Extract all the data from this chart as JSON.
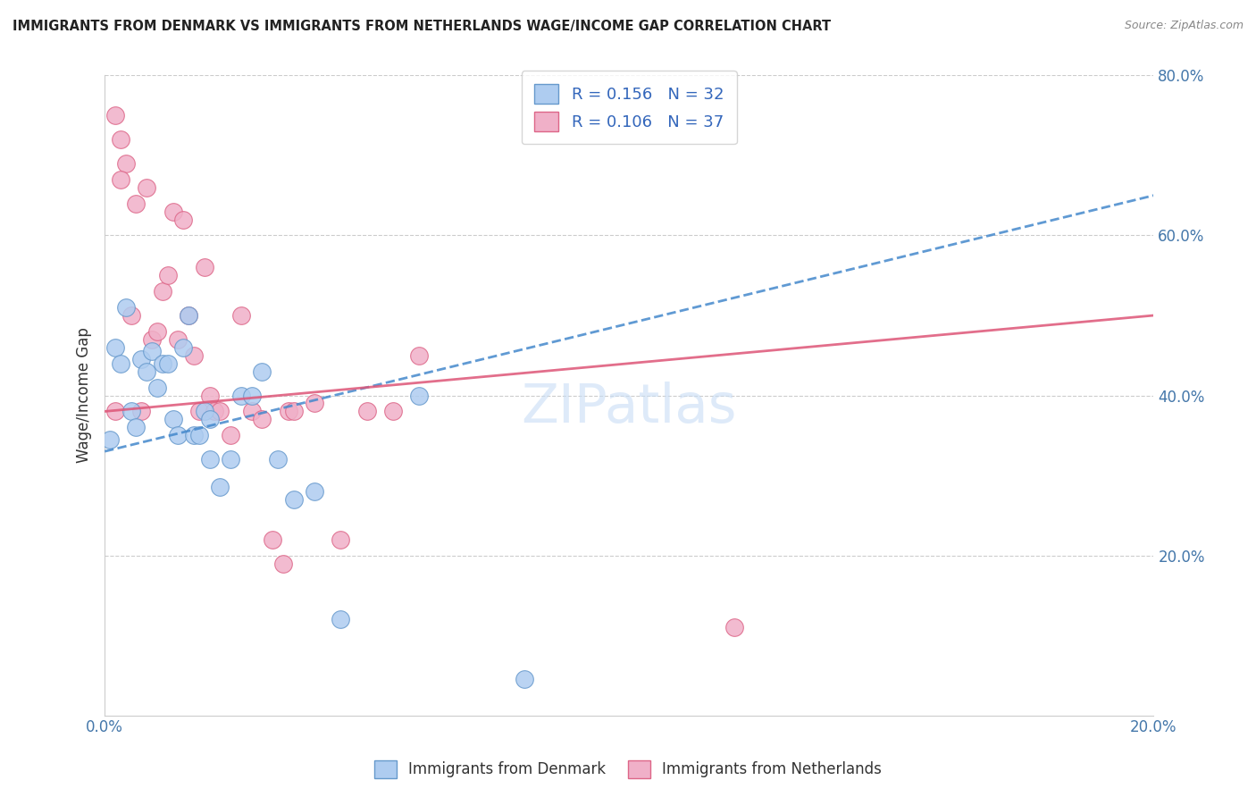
{
  "title": "IMMIGRANTS FROM DENMARK VS IMMIGRANTS FROM NETHERLANDS WAGE/INCOME GAP CORRELATION CHART",
  "source": "Source: ZipAtlas.com",
  "ylabel_left": "Wage/Income Gap",
  "x_min": 0.0,
  "x_max": 0.2,
  "y_min": 0.0,
  "y_max": 0.8,
  "x_ticks": [
    0.0,
    0.04,
    0.08,
    0.12,
    0.16,
    0.2
  ],
  "x_tick_labels": [
    "0.0%",
    "",
    "",
    "",
    "",
    "20.0%"
  ],
  "y_ticks_right": [
    0.2,
    0.4,
    0.6,
    0.8
  ],
  "y_tick_labels_right": [
    "20.0%",
    "40.0%",
    "60.0%",
    "80.0%"
  ],
  "denmark_color": "#aeccf0",
  "netherlands_color": "#f0b0c8",
  "denmark_edge_color": "#6699cc",
  "netherlands_edge_color": "#dd6688",
  "denmark_line_color": "#4488cc",
  "netherlands_line_color": "#dd5577",
  "denmark_R": 0.156,
  "denmark_N": 32,
  "netherlands_R": 0.106,
  "netherlands_N": 37,
  "watermark": "ZIPatlas",
  "denmark_x": [
    0.001,
    0.002,
    0.003,
    0.004,
    0.005,
    0.006,
    0.007,
    0.008,
    0.009,
    0.01,
    0.011,
    0.012,
    0.013,
    0.014,
    0.015,
    0.016,
    0.017,
    0.018,
    0.019,
    0.02,
    0.022,
    0.024,
    0.026,
    0.028,
    0.03,
    0.033,
    0.036,
    0.04,
    0.045,
    0.06,
    0.08,
    0.02
  ],
  "denmark_y": [
    0.345,
    0.46,
    0.44,
    0.51,
    0.38,
    0.36,
    0.445,
    0.43,
    0.455,
    0.41,
    0.44,
    0.44,
    0.37,
    0.35,
    0.46,
    0.5,
    0.35,
    0.35,
    0.38,
    0.32,
    0.285,
    0.32,
    0.4,
    0.4,
    0.43,
    0.32,
    0.27,
    0.28,
    0.12,
    0.4,
    0.045,
    0.37
  ],
  "netherlands_x": [
    0.002,
    0.003,
    0.004,
    0.005,
    0.006,
    0.007,
    0.008,
    0.009,
    0.01,
    0.011,
    0.012,
    0.013,
    0.014,
    0.015,
    0.016,
    0.017,
    0.018,
    0.019,
    0.02,
    0.021,
    0.022,
    0.024,
    0.026,
    0.028,
    0.03,
    0.032,
    0.034,
    0.035,
    0.036,
    0.04,
    0.045,
    0.05,
    0.055,
    0.06,
    0.12,
    0.002,
    0.003
  ],
  "netherlands_y": [
    0.75,
    0.72,
    0.69,
    0.5,
    0.64,
    0.38,
    0.66,
    0.47,
    0.48,
    0.53,
    0.55,
    0.63,
    0.47,
    0.62,
    0.5,
    0.45,
    0.38,
    0.56,
    0.4,
    0.38,
    0.38,
    0.35,
    0.5,
    0.38,
    0.37,
    0.22,
    0.19,
    0.38,
    0.38,
    0.39,
    0.22,
    0.38,
    0.38,
    0.45,
    0.11,
    0.38,
    0.67
  ],
  "dk_trend_x": [
    0.0,
    0.2
  ],
  "dk_trend_y": [
    0.33,
    0.65
  ],
  "nl_trend_x": [
    0.0,
    0.2
  ],
  "nl_trend_y": [
    0.38,
    0.5
  ]
}
